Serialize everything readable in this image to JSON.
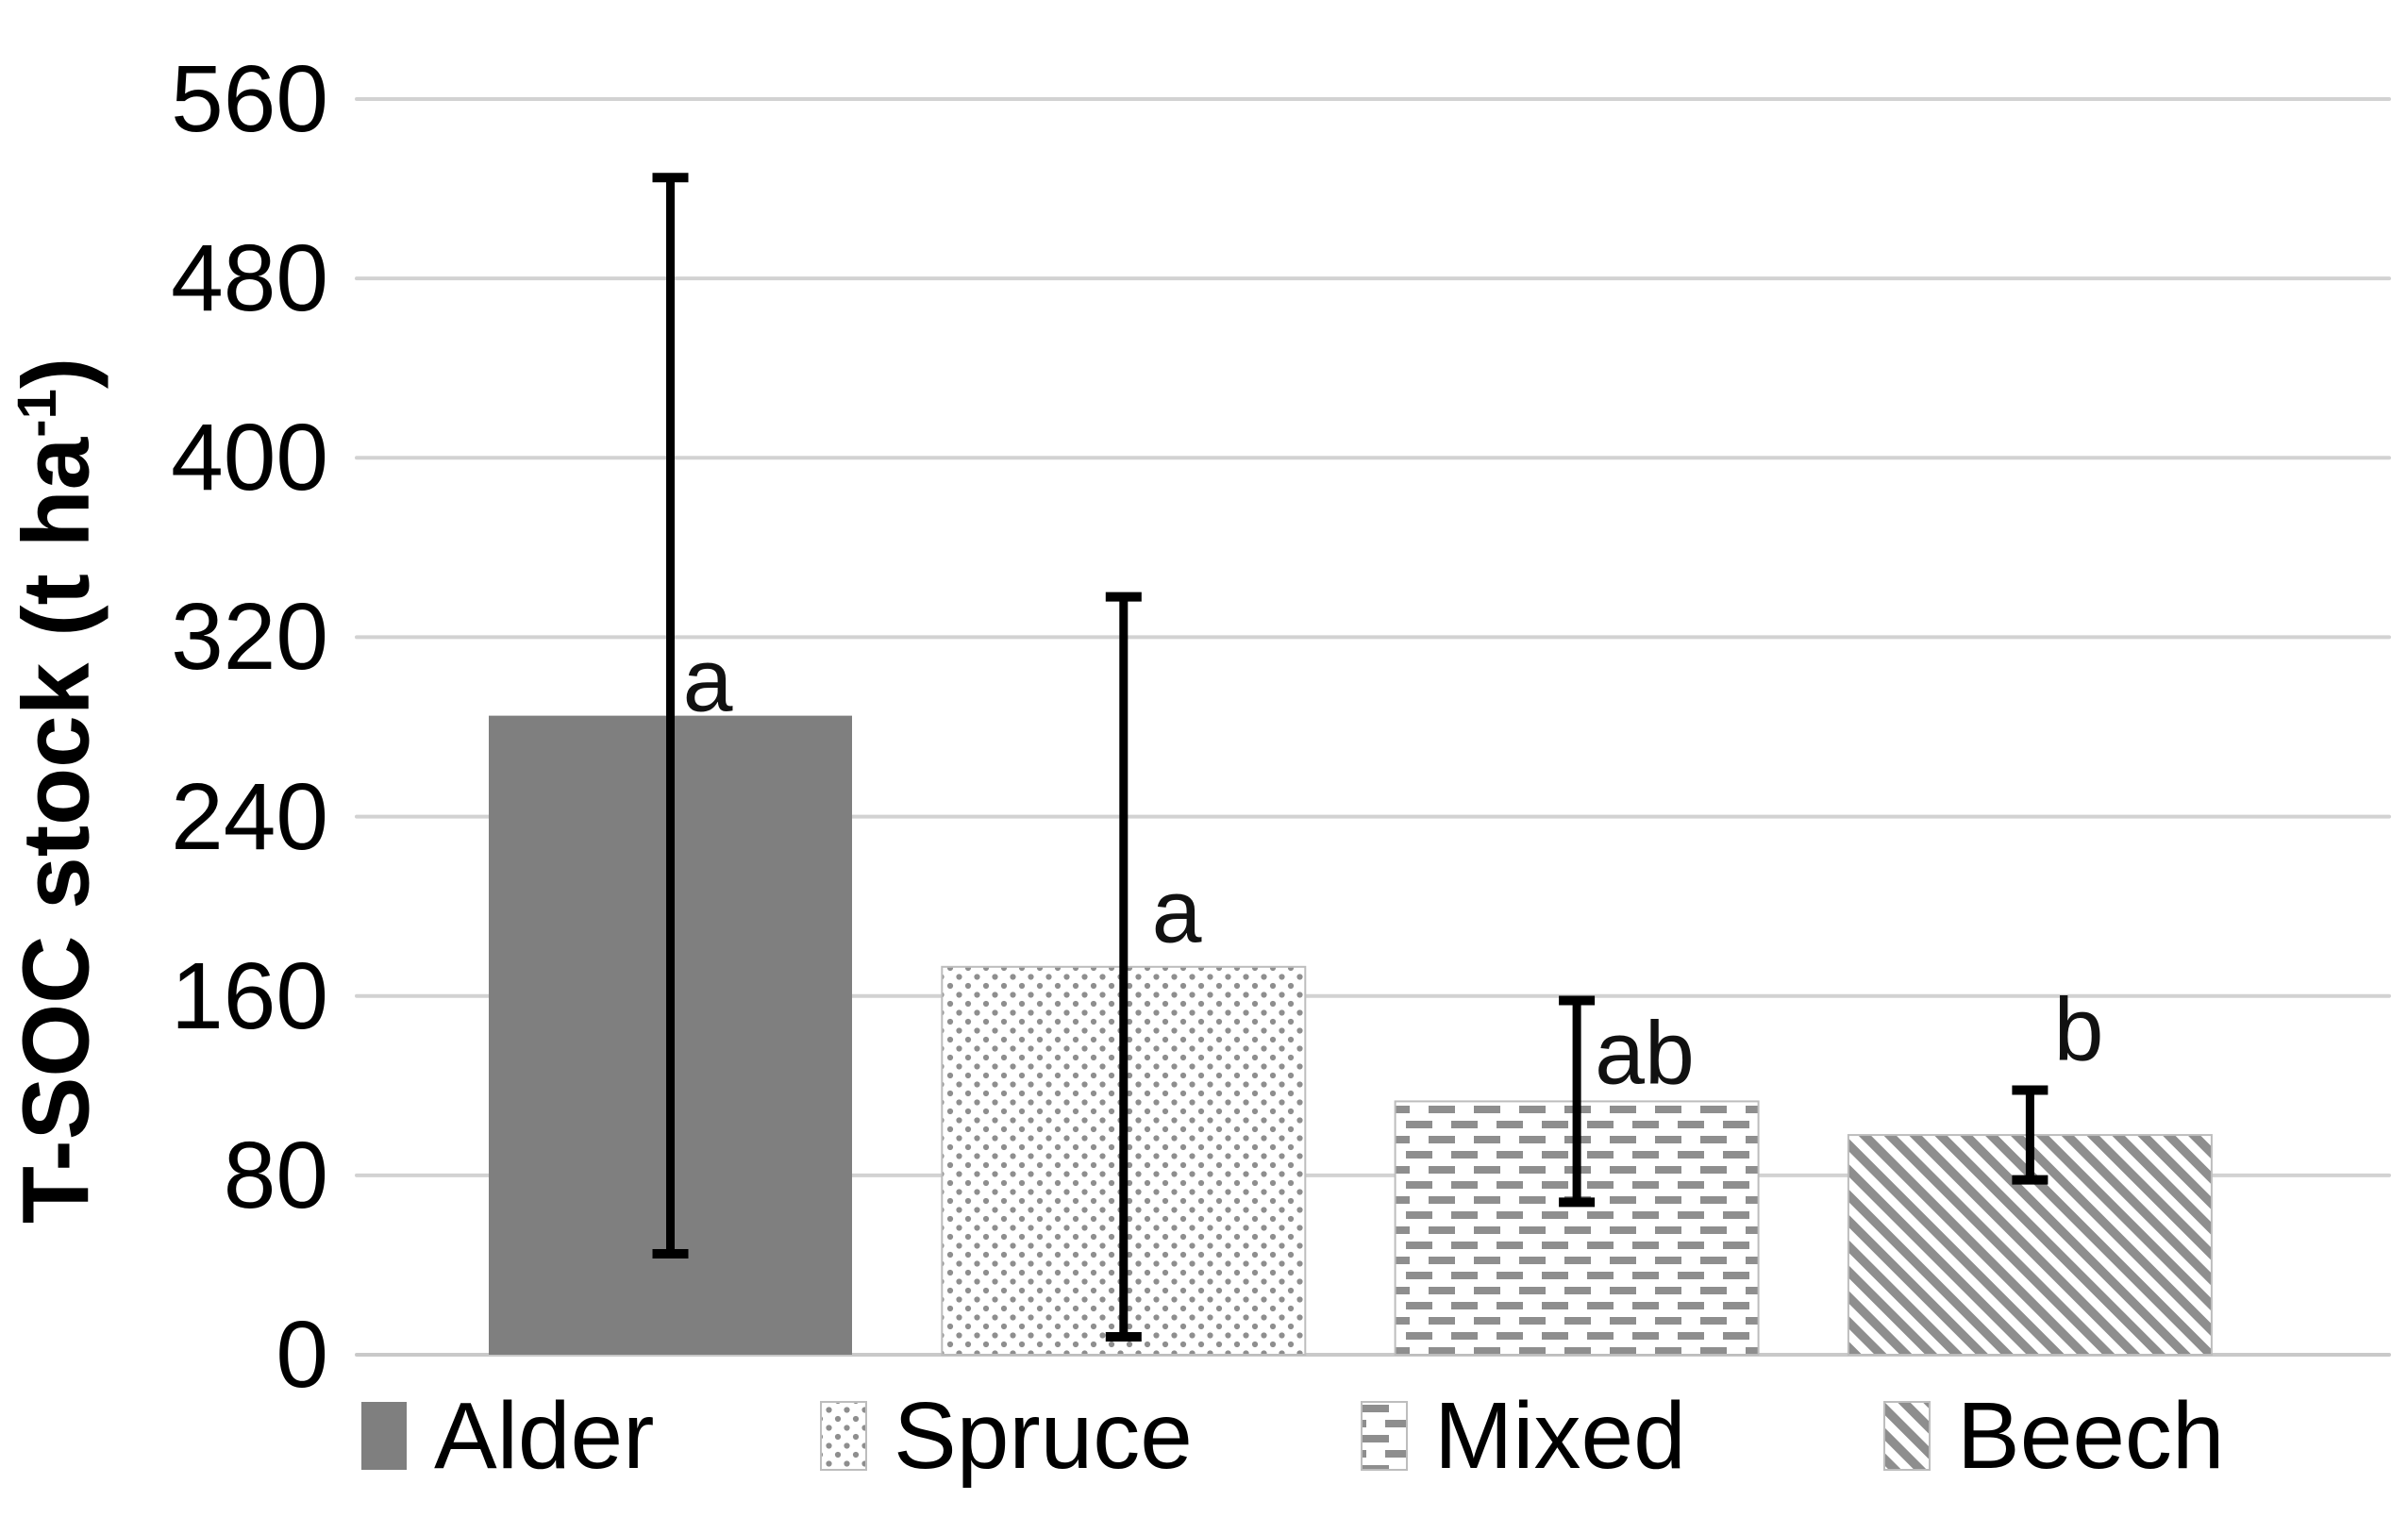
{
  "chart_data": {
    "type": "bar",
    "title": "",
    "xlabel": "",
    "ylabel": "T-SOC stock (t ha-1)",
    "ylabel_parts": {
      "main": "T-SOC stock (t ha",
      "sup": "-1",
      "close": ")"
    },
    "categories": [
      "Alder",
      "Spruce",
      "Mixed",
      "Beech"
    ],
    "values": [
      285,
      173,
      113,
      98
    ],
    "error_low": [
      45,
      8,
      68,
      78
    ],
    "error_high": [
      525,
      338,
      158,
      118
    ],
    "sig_letters": [
      "a",
      "a",
      "ab",
      "b"
    ],
    "y_ticks": [
      0,
      80,
      160,
      240,
      320,
      400,
      480,
      560
    ],
    "ylim": [
      0,
      560
    ],
    "grid": true,
    "legend_position": "bottom",
    "bar_patterns": [
      "solid-gray",
      "dotted-diamond",
      "dashed-horizontal",
      "diagonal-stripes"
    ]
  },
  "legend": {
    "items": [
      {
        "label": "Alder",
        "pattern": "solid-gray"
      },
      {
        "label": "Spruce",
        "pattern": "dotted-diamond"
      },
      {
        "label": "Mixed",
        "pattern": "dashed-horizontal"
      },
      {
        "label": "Beech",
        "pattern": "diagonal-stripes"
      }
    ]
  },
  "colors": {
    "bar_gray": "#7f7f7f",
    "pattern_gray": "#8e8e8e",
    "pattern_border": "#bdbdbd",
    "gridline": "#d2d2d2",
    "axis_line": "#c9c9c9",
    "error_bar": "#000000",
    "text": "#000000",
    "background": "#ffffff"
  }
}
